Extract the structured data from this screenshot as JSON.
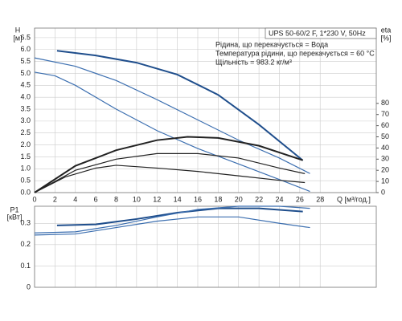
{
  "chart_data": [
    {
      "type": "line",
      "info": {
        "model": "UPS 50-60/2 F, 1*230 V, 50Hz",
        "lines": [
          "Рідина, що перекачується = Вода",
          "Температура рідини, що перекачується = 60 °C",
          "Щільність = 983.2 кг/м³"
        ]
      },
      "ylabel": "H",
      "yunit": "[м]",
      "y2label": "eta",
      "y2unit": "[%]",
      "xlabel": "Q [м³/год.]",
      "xlim": [
        0,
        33.5
      ],
      "xticks": [
        0,
        2,
        4,
        6,
        8,
        10,
        12,
        14,
        16,
        18,
        20,
        22,
        24,
        26,
        28
      ],
      "ylim": [
        0,
        6.9
      ],
      "yticks": [
        {
          "value": 0,
          "label": "0.0"
        },
        0.5,
        {
          "value": 1,
          "label": "1.0"
        },
        1.5,
        {
          "value": 2,
          "label": "2.0"
        },
        2.5,
        {
          "value": 3,
          "label": "3.0"
        },
        3.5,
        {
          "value": 4,
          "label": "4.0"
        },
        4.5,
        {
          "value": 5,
          "label": "5.0"
        },
        5.5,
        {
          "value": 6,
          "label": "6.0"
        },
        6.5
      ],
      "y2lim": [
        0,
        147.5
      ],
      "y2ticks": [
        0,
        10,
        20,
        30,
        40,
        50,
        60,
        70,
        80
      ],
      "grid": true,
      "series": [
        {
          "color": "#1f4e8c",
          "width": 2,
          "x": [
            2.2,
            6,
            10,
            14,
            18,
            22,
            26.3
          ],
          "values": [
            5.95,
            5.75,
            5.45,
            4.95,
            4.1,
            2.85,
            1.35
          ]
        },
        {
          "color": "#3c6fb0",
          "width": 1.2,
          "x": [
            0,
            4,
            8,
            12,
            16,
            20,
            24,
            27
          ],
          "values": [
            5.65,
            5.3,
            4.7,
            3.9,
            3.05,
            2.2,
            1.45,
            0.8
          ]
        },
        {
          "color": "#3c6fb0",
          "width": 1.2,
          "x": [
            0,
            2,
            4,
            8,
            12,
            16,
            20,
            24,
            27
          ],
          "values": [
            5.05,
            4.9,
            4.5,
            3.5,
            2.6,
            1.85,
            1.2,
            0.55,
            0.05
          ]
        },
        {
          "color": "#222222",
          "width": 2,
          "axis": "y2",
          "x": [
            0,
            4,
            8,
            12,
            15,
            18,
            22,
            26.3
          ],
          "values": [
            0,
            24,
            38,
            47,
            50,
            49,
            42,
            29
          ]
        },
        {
          "color": "#222222",
          "width": 1.2,
          "axis": "y2",
          "x": [
            0,
            4,
            8,
            12,
            16,
            20,
            24,
            26.5
          ],
          "values": [
            0,
            20,
            30,
            35,
            35,
            31,
            22,
            17
          ]
        },
        {
          "color": "#222222",
          "width": 1.2,
          "axis": "y2",
          "x": [
            0,
            3,
            6,
            8,
            12,
            16,
            20,
            24,
            26.5
          ],
          "values": [
            0,
            14,
            22,
            24.5,
            22,
            19,
            15,
            11,
            9
          ]
        }
      ]
    },
    {
      "type": "line",
      "ylabel": "P1",
      "yunit": "[кВт]",
      "xlim": [
        0,
        33.5
      ],
      "xticks": [
        0,
        2,
        4,
        6,
        8,
        10,
        12,
        14,
        16,
        18,
        20,
        22,
        24,
        26,
        28
      ],
      "ylim": [
        0,
        0.38
      ],
      "yticks": [
        0,
        0.1,
        0.2,
        0.3
      ],
      "grid": true,
      "series": [
        {
          "color": "#1f4e8c",
          "width": 2,
          "x": [
            2.2,
            6,
            10,
            14,
            18,
            22,
            26.3
          ],
          "values": [
            0.29,
            0.295,
            0.32,
            0.35,
            0.37,
            0.37,
            0.355
          ]
        },
        {
          "color": "#3c6fb0",
          "width": 1.2,
          "x": [
            0,
            4,
            8,
            12,
            16,
            20,
            24,
            27
          ],
          "values": [
            0.255,
            0.26,
            0.29,
            0.33,
            0.365,
            0.38,
            0.38,
            0.37
          ]
        },
        {
          "color": "#3c6fb0",
          "width": 1.2,
          "x": [
            0,
            4,
            8,
            12,
            16,
            20,
            24,
            27
          ],
          "values": [
            0.245,
            0.25,
            0.28,
            0.31,
            0.33,
            0.33,
            0.3,
            0.28
          ]
        }
      ]
    }
  ]
}
